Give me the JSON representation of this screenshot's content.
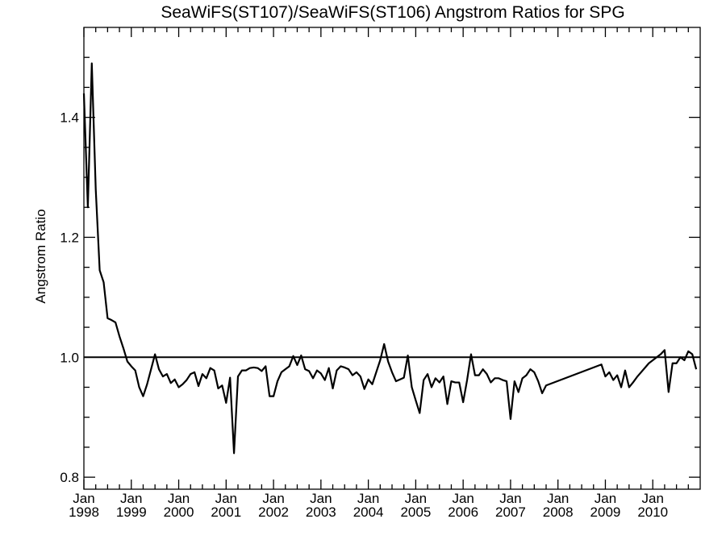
{
  "chart_data": {
    "type": "line",
    "title": "SeaWiFS(ST107)/SeaWiFS(ST106)  Angstrom Ratios for SPG",
    "xlabel": "",
    "ylabel": "Angstrom Ratio",
    "xlim": [
      "1998-01",
      "2011-01"
    ],
    "ylim": [
      0.78,
      1.55
    ],
    "grid": false,
    "y_ticks": [
      {
        "value": 0.8,
        "label": "0.8"
      },
      {
        "value": 1.0,
        "label": "1.0"
      },
      {
        "value": 1.2,
        "label": "1.2"
      },
      {
        "value": 1.4,
        "label": "1.4"
      }
    ],
    "x_ticks": [
      {
        "month": "Jan",
        "year": "1998",
        "date": "1998-01"
      },
      {
        "month": "Jan",
        "year": "1999",
        "date": "1999-01"
      },
      {
        "month": "Jan",
        "year": "2000",
        "date": "2000-01"
      },
      {
        "month": "Jan",
        "year": "2001",
        "date": "2001-01"
      },
      {
        "month": "Jan",
        "year": "2002",
        "date": "2002-01"
      },
      {
        "month": "Jan",
        "year": "2003",
        "date": "2003-01"
      },
      {
        "month": "Jan",
        "year": "2004",
        "date": "2004-01"
      },
      {
        "month": "Jan",
        "year": "2005",
        "date": "2005-01"
      },
      {
        "month": "Jan",
        "year": "2006",
        "date": "2006-01"
      },
      {
        "month": "Jan",
        "year": "2007",
        "date": "2007-01"
      },
      {
        "month": "Jan",
        "year": "2008",
        "date": "2008-01"
      },
      {
        "month": "Jan",
        "year": "2009",
        "date": "2009-01"
      },
      {
        "month": "Jan",
        "year": "2010",
        "date": "2010-01"
      }
    ],
    "reference_line": 1.0,
    "series": [
      {
        "x": [
          "1998-01",
          "1998-02",
          "1998-03",
          "1998-04",
          "1998-05",
          "1998-06",
          "1998-07",
          "1998-08",
          "1998-09",
          "1998-10",
          "1998-11",
          "1998-12",
          "1999-01",
          "1999-02",
          "1999-03",
          "1999-04",
          "1999-05",
          "1999-06",
          "1999-07",
          "1999-08",
          "1999-09",
          "1999-10",
          "1999-11",
          "1999-12",
          "2000-01",
          "2000-02",
          "2000-03",
          "2000-04",
          "2000-05",
          "2000-06",
          "2000-07",
          "2000-08",
          "2000-09",
          "2000-10",
          "2000-11",
          "2000-12",
          "2001-01",
          "2001-02",
          "2001-03",
          "2001-04",
          "2001-05",
          "2001-06",
          "2001-07",
          "2001-08",
          "2001-09",
          "2001-10",
          "2001-11",
          "2001-12",
          "2002-01",
          "2002-02",
          "2002-03",
          "2002-04",
          "2002-05",
          "2002-06",
          "2002-07",
          "2002-08",
          "2002-09",
          "2002-10",
          "2002-11",
          "2002-12",
          "2003-01",
          "2003-02",
          "2003-03",
          "2003-04",
          "2003-05",
          "2003-06",
          "2003-07",
          "2003-08",
          "2003-09",
          "2003-10",
          "2003-11",
          "2003-12",
          "2004-01",
          "2004-02",
          "2004-03",
          "2004-04",
          "2004-05",
          "2004-06",
          "2004-07",
          "2004-08",
          "2004-09",
          "2004-10",
          "2004-11",
          "2004-12",
          "2005-01",
          "2005-02",
          "2005-03",
          "2005-04",
          "2005-05",
          "2005-06",
          "2005-07",
          "2005-08",
          "2005-09",
          "2005-10",
          "2005-11",
          "2005-12",
          "2006-01",
          "2006-02",
          "2006-03",
          "2006-04",
          "2006-05",
          "2006-06",
          "2006-07",
          "2006-08",
          "2006-09",
          "2006-10",
          "2006-11",
          "2006-12",
          "2007-01",
          "2007-02",
          "2007-03",
          "2007-04",
          "2007-05",
          "2007-06",
          "2007-07",
          "2007-08",
          "2007-09",
          "2007-10",
          "2008-12",
          "2009-01",
          "2009-02",
          "2009-03",
          "2009-04",
          "2009-05",
          "2009-06",
          "2009-07",
          "2009-08",
          "2009-09",
          "2009-12",
          "2010-01",
          "2010-02",
          "2010-03",
          "2010-04",
          "2010-05",
          "2010-06",
          "2010-07",
          "2010-08",
          "2010-09",
          "2010-10",
          "2010-11",
          "2010-12"
        ],
        "values": [
          1.44,
          1.25,
          1.49,
          1.28,
          1.145,
          1.125,
          1.065,
          1.062,
          1.058,
          1.035,
          1.015,
          0.993,
          0.985,
          0.978,
          0.95,
          0.935,
          0.955,
          0.98,
          1.005,
          0.98,
          0.968,
          0.972,
          0.957,
          0.963,
          0.95,
          0.955,
          0.962,
          0.972,
          0.975,
          0.952,
          0.972,
          0.965,
          0.982,
          0.978,
          0.948,
          0.953,
          0.924,
          0.966,
          0.84,
          0.968,
          0.978,
          0.978,
          0.982,
          0.983,
          0.982,
          0.977,
          0.985,
          0.935,
          0.935,
          0.96,
          0.975,
          0.98,
          0.985,
          1.002,
          0.987,
          1.003,
          0.98,
          0.977,
          0.965,
          0.978,
          0.973,
          0.962,
          0.982,
          0.948,
          0.978,
          0.985,
          0.983,
          0.98,
          0.97,
          0.975,
          0.968,
          0.947,
          0.963,
          0.955,
          0.975,
          0.995,
          1.022,
          0.993,
          0.975,
          0.96,
          0.963,
          0.966,
          1.003,
          0.95,
          0.928,
          0.907,
          0.962,
          0.972,
          0.95,
          0.965,
          0.958,
          0.968,
          0.922,
          0.96,
          0.958,
          0.958,
          0.925,
          0.962,
          1.005,
          0.97,
          0.97,
          0.98,
          0.972,
          0.958,
          0.965,
          0.965,
          0.962,
          0.96,
          0.897,
          0.96,
          0.942,
          0.965,
          0.97,
          0.98,
          0.975,
          0.96,
          0.94,
          0.953,
          0.988,
          0.968,
          0.975,
          0.962,
          0.97,
          0.95,
          0.978,
          0.95,
          0.958,
          0.967,
          0.99,
          0.995,
          1.0,
          1.005,
          1.012,
          0.942,
          0.99,
          0.99,
          1.0,
          0.995,
          1.01,
          1.005,
          0.98
        ]
      }
    ]
  }
}
